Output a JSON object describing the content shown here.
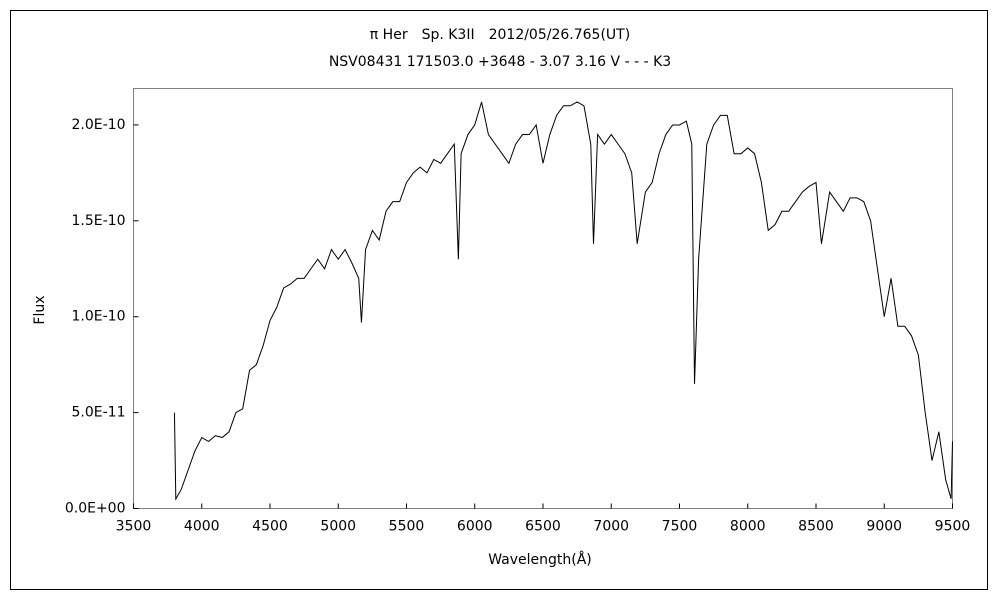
{
  "chart_data": {
    "type": "line",
    "title": "π Her　Sp. K3II　2012/05/26.765(UT)",
    "subtitle": "NSV08431 171503.0 +3648 - 3.07 3.16 V - - - K3",
    "x_label": "Wavelength(Å)",
    "y_label": "Flux",
    "x": [
      3800,
      3810,
      3850,
      3900,
      3950,
      4000,
      4050,
      4100,
      4150,
      4200,
      4250,
      4300,
      4350,
      4400,
      4450,
      4500,
      4550,
      4600,
      4650,
      4700,
      4750,
      4800,
      4850,
      4900,
      4950,
      5000,
      5050,
      5100,
      5150,
      5170,
      5200,
      5250,
      5300,
      5350,
      5400,
      5450,
      5500,
      5550,
      5600,
      5650,
      5700,
      5750,
      5800,
      5850,
      5880,
      5900,
      5950,
      6000,
      6050,
      6100,
      6150,
      6200,
      6250,
      6300,
      6350,
      6400,
      6450,
      6500,
      6550,
      6600,
      6650,
      6700,
      6750,
      6800,
      6850,
      6870,
      6900,
      6950,
      7000,
      7050,
      7100,
      7150,
      7190,
      7250,
      7300,
      7350,
      7400,
      7450,
      7500,
      7550,
      7590,
      7610,
      7640,
      7700,
      7750,
      7800,
      7850,
      7900,
      7950,
      8000,
      8050,
      8100,
      8150,
      8200,
      8250,
      8300,
      8350,
      8400,
      8450,
      8500,
      8540,
      8600,
      8650,
      8700,
      8750,
      8800,
      8850,
      8900,
      8950,
      9000,
      9050,
      9100,
      9150,
      9200,
      9250,
      9300,
      9350,
      9400,
      9450,
      9490,
      9500
    ],
    "series": [
      {
        "name": "Flux",
        "color": "#000000",
        "values": [
          5e-11,
          5e-12,
          1e-11,
          2e-11,
          3e-11,
          3.7e-11,
          3.5e-11,
          3.8e-11,
          3.7e-11,
          4e-11,
          5e-11,
          5.2e-11,
          7.2e-11,
          7.5e-11,
          8.5e-11,
          9.8e-11,
          1.05e-10,
          1.15e-10,
          1.17e-10,
          1.2e-10,
          1.2e-10,
          1.25e-10,
          1.3e-10,
          1.25e-10,
          1.35e-10,
          1.3e-10,
          1.35e-10,
          1.28e-10,
          1.2e-10,
          9.7e-11,
          1.35e-10,
          1.45e-10,
          1.4e-10,
          1.55e-10,
          1.6e-10,
          1.6e-10,
          1.7e-10,
          1.75e-10,
          1.78e-10,
          1.75e-10,
          1.82e-10,
          1.8e-10,
          1.85e-10,
          1.9e-10,
          1.3e-10,
          1.85e-10,
          1.95e-10,
          2e-10,
          2.12e-10,
          1.95e-10,
          1.9e-10,
          1.85e-10,
          1.8e-10,
          1.9e-10,
          1.95e-10,
          1.95e-10,
          2e-10,
          1.8e-10,
          1.95e-10,
          2.05e-10,
          2.1e-10,
          2.1e-10,
          2.12e-10,
          2.1e-10,
          1.9e-10,
          1.38e-10,
          1.95e-10,
          1.9e-10,
          1.95e-10,
          1.9e-10,
          1.85e-10,
          1.75e-10,
          1.38e-10,
          1.65e-10,
          1.7e-10,
          1.85e-10,
          1.95e-10,
          2e-10,
          2e-10,
          2.02e-10,
          1.9e-10,
          6.5e-11,
          1.3e-10,
          1.9e-10,
          2e-10,
          2.05e-10,
          2.05e-10,
          1.85e-10,
          1.85e-10,
          1.88e-10,
          1.85e-10,
          1.7e-10,
          1.45e-10,
          1.48e-10,
          1.55e-10,
          1.55e-10,
          1.6e-10,
          1.65e-10,
          1.68e-10,
          1.7e-10,
          1.38e-10,
          1.65e-10,
          1.6e-10,
          1.55e-10,
          1.62e-10,
          1.62e-10,
          1.6e-10,
          1.5e-10,
          1.25e-10,
          1e-10,
          1.2e-10,
          9.5e-11,
          9.5e-11,
          9e-11,
          8e-11,
          5e-11,
          2.5e-11,
          4e-11,
          1.5e-11,
          5e-12,
          3.5e-11
        ]
      }
    ],
    "xlim": [
      3500,
      9500
    ],
    "ylim": [
      0,
      2.19e-10
    ],
    "xticks": [
      3500,
      4000,
      4500,
      5000,
      5500,
      6000,
      6500,
      7000,
      7500,
      8000,
      8500,
      9000,
      9500
    ],
    "yticks": [
      {
        "value": 0,
        "label": "0.0E+00"
      },
      {
        "value": 5e-11,
        "label": "5.0E-11"
      },
      {
        "value": 1e-10,
        "label": "1.0E-10"
      },
      {
        "value": 1.5e-10,
        "label": "1.5E-10"
      },
      {
        "value": 2e-10,
        "label": "2.0E-10"
      }
    ]
  }
}
